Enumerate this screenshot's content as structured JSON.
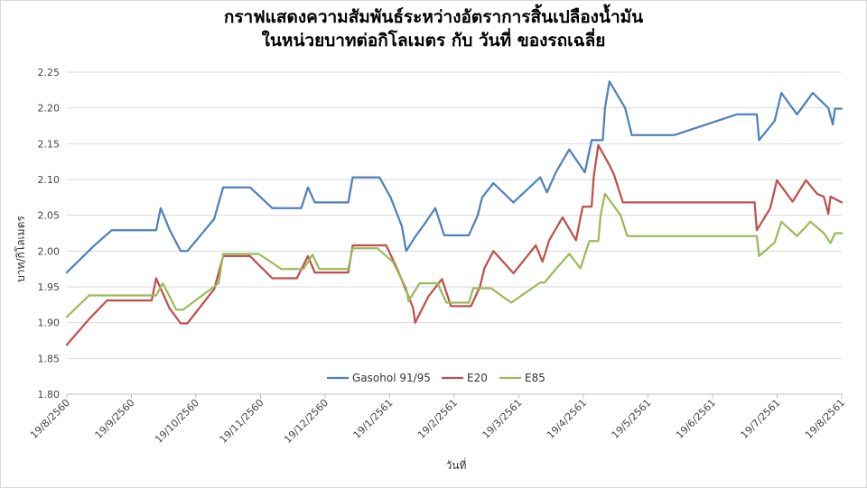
{
  "chart_data": {
    "type": "line",
    "title_line1": "กราฟแสดงความสัมพันธ์ระหว่างอัตราการสิ้นเปลืองน้ำมัน",
    "title_line2": "ในหน่วยบาทต่อกิโลเมตร  กับ วันที่ ของรถเฉลี่ย",
    "xlabel": "วันที่",
    "ylabel": "บาท/กิโลเมตร",
    "ylim": [
      1.8,
      2.25
    ],
    "yticks": [
      "1.80",
      "1.85",
      "1.90",
      "1.95",
      "2.00",
      "2.05",
      "2.10",
      "2.15",
      "2.20",
      "2.25"
    ],
    "xticks": [
      "19/8/2560",
      "19/9/2560",
      "19/10/2560",
      "19/11/2560",
      "19/12/2560",
      "19/1/2561",
      "19/2/2561",
      "19/3/2561",
      "19/4/2561",
      "19/5/2561",
      "19/6/2561",
      "19/7/2561",
      "19/8/2561"
    ],
    "grid": true,
    "legend_position": "bottom-center",
    "series": [
      {
        "name": "Gasohol 91/95",
        "color": "#4f81bd",
        "points": [
          [
            0,
            1.97
          ],
          [
            12,
            2.007
          ],
          [
            20,
            2.029
          ],
          [
            40,
            2.029
          ],
          [
            42,
            2.06
          ],
          [
            46,
            2.03
          ],
          [
            51,
            2.0
          ],
          [
            54,
            2.0
          ],
          [
            66,
            2.045
          ],
          [
            70,
            2.089
          ],
          [
            82,
            2.089
          ],
          [
            92,
            2.06
          ],
          [
            105,
            2.06
          ],
          [
            108,
            2.089
          ],
          [
            111,
            2.068
          ],
          [
            126,
            2.068
          ],
          [
            128,
            2.103
          ],
          [
            140,
            2.103
          ],
          [
            145,
            2.075
          ],
          [
            150,
            2.035
          ],
          [
            152,
            2.0
          ],
          [
            156,
            2.02
          ],
          [
            160,
            2.037
          ],
          [
            165,
            2.06
          ],
          [
            169,
            2.022
          ],
          [
            180,
            2.022
          ],
          [
            184,
            2.05
          ],
          [
            186,
            2.075
          ],
          [
            191,
            2.095
          ],
          [
            200,
            2.068
          ],
          [
            212,
            2.103
          ],
          [
            215,
            2.082
          ],
          [
            219,
            2.11
          ],
          [
            225,
            2.142
          ],
          [
            232,
            2.11
          ],
          [
            235,
            2.155
          ],
          [
            240,
            2.155
          ],
          [
            241,
            2.2
          ],
          [
            243,
            2.237
          ],
          [
            250,
            2.2
          ],
          [
            253,
            2.162
          ],
          [
            272,
            2.162
          ],
          [
            300,
            2.191
          ],
          [
            309,
            2.191
          ],
          [
            310,
            2.155
          ],
          [
            317,
            2.182
          ],
          [
            320,
            2.221
          ],
          [
            327,
            2.191
          ],
          [
            334,
            2.221
          ],
          [
            341,
            2.2
          ],
          [
            343,
            2.177
          ],
          [
            344,
            2.199
          ],
          [
            347,
            2.199
          ]
        ]
      },
      {
        "name": "E20",
        "color": "#c0504d",
        "points": [
          [
            0,
            1.869
          ],
          [
            10,
            1.905
          ],
          [
            18,
            1.931
          ],
          [
            38,
            1.931
          ],
          [
            40,
            1.962
          ],
          [
            46,
            1.92
          ],
          [
            51,
            1.899
          ],
          [
            54,
            1.899
          ],
          [
            66,
            1.947
          ],
          [
            70,
            1.993
          ],
          [
            82,
            1.993
          ],
          [
            92,
            1.962
          ],
          [
            103,
            1.962
          ],
          [
            108,
            1.993
          ],
          [
            111,
            1.97
          ],
          [
            126,
            1.97
          ],
          [
            128,
            2.008
          ],
          [
            143,
            2.008
          ],
          [
            148,
            1.975
          ],
          [
            155,
            1.921
          ],
          [
            156,
            1.9
          ],
          [
            162,
            1.937
          ],
          [
            168,
            1.961
          ],
          [
            172,
            1.923
          ],
          [
            181,
            1.923
          ],
          [
            185,
            1.95
          ],
          [
            187,
            1.976
          ],
          [
            191,
            2.0
          ],
          [
            200,
            1.969
          ],
          [
            210,
            2.008
          ],
          [
            213,
            1.985
          ],
          [
            216,
            2.015
          ],
          [
            222,
            2.047
          ],
          [
            228,
            2.015
          ],
          [
            231,
            2.062
          ],
          [
            235,
            2.062
          ],
          [
            236,
            2.105
          ],
          [
            238,
            2.148
          ],
          [
            243,
            2.12
          ],
          [
            245,
            2.107
          ],
          [
            249,
            2.068
          ],
          [
            308,
            2.068
          ],
          [
            309,
            2.029
          ],
          [
            315,
            2.06
          ],
          [
            318,
            2.099
          ],
          [
            325,
            2.069
          ],
          [
            331,
            2.099
          ],
          [
            336,
            2.08
          ],
          [
            339,
            2.076
          ],
          [
            341,
            2.052
          ],
          [
            342,
            2.076
          ],
          [
            347,
            2.068
          ]
        ]
      },
      {
        "name": "E85",
        "color": "#9bbb59",
        "points": [
          [
            0,
            1.908
          ],
          [
            10,
            1.938
          ],
          [
            40,
            1.938
          ],
          [
            43,
            1.955
          ],
          [
            49,
            1.918
          ],
          [
            52,
            1.918
          ],
          [
            68,
            1.955
          ],
          [
            70,
            1.996
          ],
          [
            86,
            1.996
          ],
          [
            96,
            1.975
          ],
          [
            106,
            1.975
          ],
          [
            110,
            1.995
          ],
          [
            113,
            1.975
          ],
          [
            126,
            1.975
          ],
          [
            128,
            2.004
          ],
          [
            139,
            2.004
          ],
          [
            146,
            1.985
          ],
          [
            152,
            1.948
          ],
          [
            153,
            1.93
          ],
          [
            158,
            1.955
          ],
          [
            166,
            1.955
          ],
          [
            170,
            1.928
          ],
          [
            180,
            1.928
          ],
          [
            182,
            1.948
          ],
          [
            190,
            1.948
          ],
          [
            199,
            1.928
          ],
          [
            212,
            1.956
          ],
          [
            214,
            1.956
          ],
          [
            219,
            1.975
          ],
          [
            225,
            1.996
          ],
          [
            230,
            1.976
          ],
          [
            234,
            2.014
          ],
          [
            238,
            2.014
          ],
          [
            239,
            2.05
          ],
          [
            241,
            2.08
          ],
          [
            248,
            2.05
          ],
          [
            251,
            2.021
          ],
          [
            309,
            2.021
          ],
          [
            310,
            1.993
          ],
          [
            317,
            2.012
          ],
          [
            320,
            2.041
          ],
          [
            327,
            2.021
          ],
          [
            333,
            2.041
          ],
          [
            339,
            2.025
          ],
          [
            342,
            2.011
          ],
          [
            344,
            2.025
          ],
          [
            347,
            2.025
          ]
        ]
      }
    ]
  }
}
